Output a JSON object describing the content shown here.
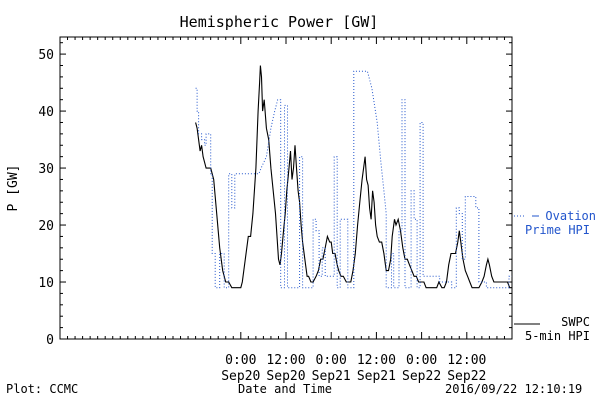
{
  "chart_data": {
    "type": "line",
    "title": "Hemispheric Power [GW]",
    "ylabel": "P [GW]",
    "xlabel": "Date and Time",
    "ylim": [
      0,
      53
    ],
    "yticks": [
      0,
      10,
      20,
      30,
      40,
      50
    ],
    "xlim": [
      -24,
      36
    ],
    "xticks": [
      {
        "x": 0,
        "line1": "0:00",
        "line2": "Sep20"
      },
      {
        "x": 6,
        "line1": "12:00",
        "line2": "Sep20"
      },
      {
        "x": 12,
        "line1": "0:00",
        "line2": "Sep21"
      },
      {
        "x": 18,
        "line1": "12:00",
        "line2": "Sep21"
      },
      {
        "x": 24,
        "line1": "0:00",
        "line2": "Sep22"
      },
      {
        "x": 30,
        "line1": "12:00",
        "line2": "Sep22"
      }
    ],
    "series": [
      {
        "name": "SWPC 5-min HPI",
        "legend_line1": "SWPC",
        "legend_line2": "5-min HPI",
        "color": "#000000",
        "style": "solid",
        "points": [
          [
            -6,
            38
          ],
          [
            -5.8,
            37
          ],
          [
            -5.6,
            35
          ],
          [
            -5.4,
            33
          ],
          [
            -5.2,
            34
          ],
          [
            -5,
            32
          ],
          [
            -4.6,
            30
          ],
          [
            -4,
            30
          ],
          [
            -3.6,
            28
          ],
          [
            -3.2,
            22
          ],
          [
            -2.8,
            16
          ],
          [
            -2.4,
            12
          ],
          [
            -2,
            10
          ],
          [
            -1.6,
            10
          ],
          [
            -1.2,
            9
          ],
          [
            -0.8,
            9
          ],
          [
            -0.4,
            9
          ],
          [
            0,
            9
          ],
          [
            0.2,
            10
          ],
          [
            0.6,
            14
          ],
          [
            1,
            18
          ],
          [
            1.3,
            18
          ],
          [
            1.6,
            22
          ],
          [
            2,
            30
          ],
          [
            2.3,
            40
          ],
          [
            2.5,
            45
          ],
          [
            2.6,
            48
          ],
          [
            2.75,
            46
          ],
          [
            2.9,
            40
          ],
          [
            3.1,
            42
          ],
          [
            3.4,
            37
          ],
          [
            3.7,
            35
          ],
          [
            4,
            30
          ],
          [
            4.3,
            26
          ],
          [
            4.6,
            22
          ],
          [
            4.8,
            18
          ],
          [
            5,
            14
          ],
          [
            5.2,
            13
          ],
          [
            5.4,
            15
          ],
          [
            5.6,
            18
          ],
          [
            5.9,
            22
          ],
          [
            6.1,
            26
          ],
          [
            6.4,
            30
          ],
          [
            6.6,
            33
          ],
          [
            6.8,
            28
          ],
          [
            7,
            30
          ],
          [
            7.2,
            34
          ],
          [
            7.4,
            30
          ],
          [
            7.6,
            26
          ],
          [
            7.8,
            24
          ],
          [
            8,
            20
          ],
          [
            8.2,
            17
          ],
          [
            8.4,
            15
          ],
          [
            8.6,
            13
          ],
          [
            8.8,
            11
          ],
          [
            9,
            11
          ],
          [
            9.3,
            10
          ],
          [
            9.6,
            10
          ],
          [
            10,
            11
          ],
          [
            10.3,
            12
          ],
          [
            10.6,
            14
          ],
          [
            10.9,
            14
          ],
          [
            11.2,
            16
          ],
          [
            11.5,
            18
          ],
          [
            11.8,
            17
          ],
          [
            12,
            17
          ],
          [
            12.2,
            15
          ],
          [
            12.5,
            15
          ],
          [
            12.8,
            13
          ],
          [
            13,
            12
          ],
          [
            13.3,
            11
          ],
          [
            13.6,
            11
          ],
          [
            14,
            10
          ],
          [
            14.3,
            10
          ],
          [
            14.6,
            10
          ],
          [
            14.9,
            12
          ],
          [
            15.2,
            15
          ],
          [
            15.5,
            20
          ],
          [
            15.8,
            24
          ],
          [
            16.1,
            28
          ],
          [
            16.3,
            30
          ],
          [
            16.5,
            32
          ],
          [
            16.7,
            28
          ],
          [
            16.9,
            27
          ],
          [
            17.1,
            23
          ],
          [
            17.3,
            21
          ],
          [
            17.5,
            26
          ],
          [
            17.7,
            24
          ],
          [
            17.9,
            20
          ],
          [
            18.1,
            18
          ],
          [
            18.4,
            17
          ],
          [
            18.7,
            17
          ],
          [
            19,
            15
          ],
          [
            19.3,
            12
          ],
          [
            19.6,
            12
          ],
          [
            19.9,
            14
          ],
          [
            20.1,
            18
          ],
          [
            20.4,
            21
          ],
          [
            20.6,
            20
          ],
          [
            20.9,
            21
          ],
          [
            21.2,
            19
          ],
          [
            21.5,
            16
          ],
          [
            21.8,
            14
          ],
          [
            22.1,
            14
          ],
          [
            22.4,
            13
          ],
          [
            22.7,
            12
          ],
          [
            23,
            11
          ],
          [
            23.3,
            11
          ],
          [
            23.6,
            10
          ],
          [
            24,
            10
          ],
          [
            24.3,
            10
          ],
          [
            24.6,
            9
          ],
          [
            25,
            9
          ],
          [
            25.3,
            9
          ],
          [
            25.7,
            9
          ],
          [
            26,
            9
          ],
          [
            26.3,
            10
          ],
          [
            26.7,
            9
          ],
          [
            27,
            9
          ],
          [
            27.3,
            10
          ],
          [
            27.6,
            13
          ],
          [
            27.9,
            15
          ],
          [
            28.2,
            15
          ],
          [
            28.5,
            15
          ],
          [
            28.8,
            17
          ],
          [
            29,
            19
          ],
          [
            29.2,
            17
          ],
          [
            29.5,
            14
          ],
          [
            29.8,
            12
          ],
          [
            30.1,
            11
          ],
          [
            30.4,
            10
          ],
          [
            30.7,
            9
          ],
          [
            31,
            9
          ],
          [
            31.3,
            9
          ],
          [
            31.6,
            9
          ],
          [
            32,
            10
          ],
          [
            32.3,
            11
          ],
          [
            32.6,
            13
          ],
          [
            32.8,
            14
          ],
          [
            33,
            13
          ],
          [
            33.3,
            11
          ],
          [
            33.6,
            10
          ],
          [
            33.9,
            10
          ],
          [
            34.2,
            10
          ],
          [
            34.5,
            10
          ],
          [
            34.8,
            10
          ],
          [
            35.1,
            10
          ],
          [
            35.4,
            10
          ],
          [
            35.7,
            9
          ],
          [
            36,
            9
          ]
        ]
      },
      {
        "name": "Ovation Prime HPI",
        "legend_line1": "Ovation",
        "legend_line2": "Prime HPI",
        "color": "#2255cc",
        "style": "dotted",
        "points": [
          [
            -6,
            44
          ],
          [
            -5.8,
            44
          ],
          [
            -5.8,
            40
          ],
          [
            -5.6,
            40
          ],
          [
            -5.6,
            36
          ],
          [
            -5.2,
            36
          ],
          [
            -5.2,
            35
          ],
          [
            -4.8,
            35
          ],
          [
            -4.8,
            34
          ],
          [
            -4.6,
            34
          ],
          [
            -4.6,
            36
          ],
          [
            -4.0,
            36
          ],
          [
            -4.0,
            29
          ],
          [
            -3.8,
            29
          ],
          [
            -3.8,
            15
          ],
          [
            -3.4,
            15
          ],
          [
            -3.4,
            9
          ],
          [
            -2.8,
            9
          ],
          [
            -2.8,
            15
          ],
          [
            -2.2,
            15
          ],
          [
            -2.2,
            9
          ],
          [
            -1.6,
            9
          ],
          [
            -1.6,
            29
          ],
          [
            -1.2,
            29
          ],
          [
            -1.2,
            23
          ],
          [
            -0.8,
            23
          ],
          [
            -0.8,
            29
          ],
          [
            1.2,
            29
          ],
          [
            1.2,
            29
          ],
          [
            2.4,
            29
          ],
          [
            2.7,
            30
          ],
          [
            3.4,
            32
          ],
          [
            4.0,
            37
          ],
          [
            4.5,
            40
          ],
          [
            4.9,
            42
          ],
          [
            5.3,
            42
          ],
          [
            5.3,
            9
          ],
          [
            5.8,
            9
          ],
          [
            5.8,
            41
          ],
          [
            6.2,
            41
          ],
          [
            6.2,
            9
          ],
          [
            7.8,
            9
          ],
          [
            7.8,
            32
          ],
          [
            8.2,
            32
          ],
          [
            8.2,
            9
          ],
          [
            8.8,
            9
          ],
          [
            8.8,
            9
          ],
          [
            9.6,
            9
          ],
          [
            9.6,
            21
          ],
          [
            10.0,
            21
          ],
          [
            10.0,
            19
          ],
          [
            10.4,
            19
          ],
          [
            10.4,
            11
          ],
          [
            10.8,
            11
          ],
          [
            10.8,
            16
          ],
          [
            11.2,
            16
          ],
          [
            11.2,
            11
          ],
          [
            12.4,
            11
          ],
          [
            12.4,
            32
          ],
          [
            12.8,
            32
          ],
          [
            12.8,
            9
          ],
          [
            13.2,
            9
          ],
          [
            13.2,
            21
          ],
          [
            14.2,
            21
          ],
          [
            14.2,
            9
          ],
          [
            15.0,
            9
          ],
          [
            15.0,
            47
          ],
          [
            16.8,
            47
          ],
          [
            16.8,
            47
          ],
          [
            17.4,
            44
          ],
          [
            18.1,
            38
          ],
          [
            18.6,
            31
          ],
          [
            19.0,
            26
          ],
          [
            19.3,
            22
          ],
          [
            19.3,
            9
          ],
          [
            19.6,
            9
          ],
          [
            19.6,
            9
          ],
          [
            20.0,
            9
          ],
          [
            20.0,
            15
          ],
          [
            20.3,
            15
          ],
          [
            20.3,
            9
          ],
          [
            21.0,
            9
          ],
          [
            21.0,
            19
          ],
          [
            21.4,
            19
          ],
          [
            21.4,
            42
          ],
          [
            21.8,
            42
          ],
          [
            21.8,
            9
          ],
          [
            22.6,
            9
          ],
          [
            22.6,
            26
          ],
          [
            23.0,
            26
          ],
          [
            23.0,
            21
          ],
          [
            23.4,
            21
          ],
          [
            23.4,
            9
          ],
          [
            23.8,
            9
          ],
          [
            23.8,
            38
          ],
          [
            24.2,
            38
          ],
          [
            24.2,
            11
          ],
          [
            26.4,
            11
          ],
          [
            26.4,
            10
          ],
          [
            28.0,
            10
          ],
          [
            28.0,
            9
          ],
          [
            28.6,
            9
          ],
          [
            28.6,
            23
          ],
          [
            29.0,
            23
          ],
          [
            29.0,
            22
          ],
          [
            29.4,
            22
          ],
          [
            29.4,
            14
          ],
          [
            29.8,
            14
          ],
          [
            29.8,
            25
          ],
          [
            31.2,
            25
          ],
          [
            31.2,
            23
          ],
          [
            31.6,
            23
          ],
          [
            31.6,
            10
          ],
          [
            32.6,
            10
          ],
          [
            32.6,
            9
          ],
          [
            34.0,
            9
          ],
          [
            34.0,
            9
          ],
          [
            35.2,
            9
          ],
          [
            35.2,
            9
          ],
          [
            35.6,
            9
          ],
          [
            35.6,
            11
          ],
          [
            36,
            11
          ]
        ]
      }
    ]
  },
  "footer": {
    "left": "Plot: CCMC",
    "center": "Date and Time",
    "right": "2016/09/22 12:10:19"
  }
}
